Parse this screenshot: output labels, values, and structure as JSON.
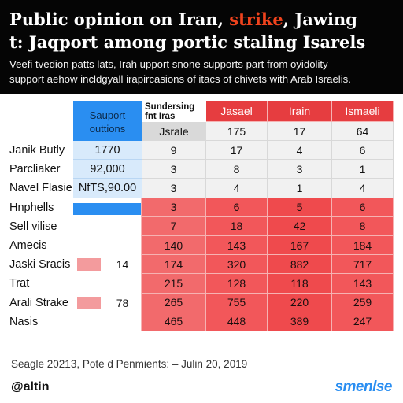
{
  "header": {
    "title_line1_pre": "Public opinion on Iran, ",
    "title_line1_highlight": "strike",
    "title_line1_post": ", Jawing",
    "title_line2": "t: Jaqport among portic staling Isarels",
    "subtitle_line1": "Veefi tvedion patts lats, Irah upport snone supports part from oyidolity",
    "subtitle_line2": "support aehow incldgyall irapircasions of itacs of chivets with Arab Israelis."
  },
  "colors": {
    "header_bg": "#050505",
    "accent_red": "#f2575a",
    "accent_blue": "#2a8ef1",
    "highlight": "#f0431d"
  },
  "chart_data": {
    "type": "table",
    "title": "Public opinion on Iran, strike, Jawing t: Jaqport among portic staling Isarels",
    "corner_header": "Sauport outtions",
    "sub_header": "Sundersing fnt Iras",
    "sub_header_value": "Jsrale",
    "columns": [
      "Jasael",
      "Irain",
      "Ismaeli"
    ],
    "header_row_values": [
      175,
      17,
      64
    ],
    "rows": [
      {
        "label": "Janik Butly",
        "value": "1770",
        "values": [
          9,
          17,
          4,
          6
        ]
      },
      {
        "label": "Parcliaker",
        "value": "92,000",
        "values": [
          3,
          8,
          3,
          1
        ]
      },
      {
        "label": "Navel Flasie",
        "value": "NfTS,90.00",
        "values": [
          3,
          4,
          1,
          4
        ]
      },
      {
        "label": "Hnphells",
        "value": "",
        "values": [
          3,
          6,
          5,
          6
        ]
      },
      {
        "label": "Sell vilise",
        "value": "",
        "values": [
          7,
          18,
          42,
          8
        ]
      },
      {
        "label": "Amecis",
        "value": "",
        "values": [
          140,
          143,
          167,
          184
        ]
      },
      {
        "label": "Jaski Sracis",
        "value": "14",
        "values": [
          174,
          320,
          882,
          717
        ]
      },
      {
        "label": "Trat",
        "value": "",
        "values": [
          215,
          128,
          118,
          143
        ]
      },
      {
        "label": "Arali Strake",
        "value": "78",
        "values": [
          265,
          755,
          220,
          259
        ]
      },
      {
        "label": "Nasis",
        "value": "",
        "values": [
          465,
          448,
          389,
          247
        ]
      }
    ]
  },
  "footer": {
    "source": "Seagle 20213, Pote d Penmients: – Julin 20, 2019",
    "handle": "@altin",
    "brand": "smenlse"
  }
}
